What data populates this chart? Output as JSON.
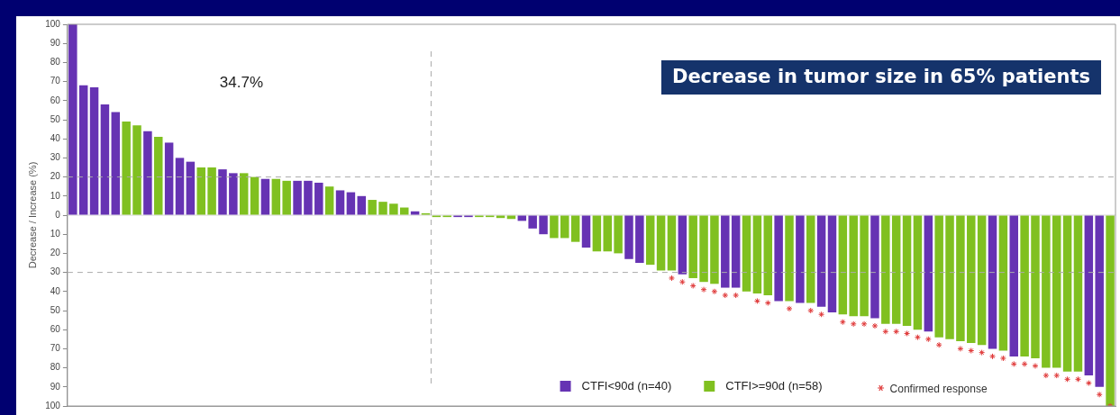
{
  "chart_data": {
    "type": "bar",
    "ylabel": "Decrease / Increase (%)",
    "annotations": [
      "34.7%",
      "Decrease in tumor size in 65% patients"
    ],
    "categories": [
      null,
      null,
      null,
      null,
      null,
      null,
      null,
      null,
      null,
      null,
      null,
      null,
      null,
      null,
      null,
      null,
      null,
      null,
      null,
      null,
      null,
      null,
      null,
      null,
      null,
      null,
      null,
      null,
      null,
      null,
      null,
      null,
      null,
      null,
      null,
      null,
      null,
      null,
      null,
      null,
      null,
      null,
      null,
      null,
      null,
      null,
      null,
      null,
      null,
      null,
      null,
      null,
      null,
      null,
      null,
      null,
      null,
      null,
      null,
      null,
      null,
      null,
      null,
      null,
      null,
      null,
      null,
      null,
      null,
      null,
      null,
      null,
      null,
      null,
      null,
      null,
      null,
      null,
      null,
      null,
      null,
      null,
      null,
      null,
      null,
      null,
      null,
      null,
      null,
      null,
      null,
      null,
      null,
      null,
      null,
      null,
      null,
      null
    ],
    "series": [
      {
        "name": "CTFI<90d (n=40)",
        "color": "#6633b3",
        "values": [
          100,
          68,
          67,
          58,
          54,
          null,
          null,
          44,
          null,
          38,
          30,
          28,
          null,
          null,
          24,
          22,
          null,
          null,
          19,
          null,
          null,
          18,
          18,
          17,
          null,
          13,
          12,
          10,
          null,
          null,
          null,
          null,
          2,
          null,
          null,
          null,
          -1,
          -1,
          null,
          null,
          null,
          null,
          -3,
          -7,
          -10,
          null,
          null,
          null,
          -17,
          null,
          null,
          null,
          -23,
          -25,
          null,
          null,
          null,
          -31,
          null,
          null,
          null,
          -38,
          -38,
          null,
          null,
          null,
          -45,
          null,
          -46,
          null,
          -48,
          -51,
          null,
          null,
          null,
          -54,
          null,
          null,
          null,
          null,
          -61,
          null,
          null,
          null,
          null,
          null,
          -70,
          null,
          -74,
          null,
          null,
          null,
          null,
          null,
          null,
          -84,
          -90,
          null
        ]
      },
      {
        "name": "CTFI>=90d (n=58)",
        "color": "#80c020",
        "values": [
          null,
          null,
          null,
          null,
          null,
          49,
          47,
          null,
          41,
          null,
          null,
          null,
          25,
          25,
          null,
          null,
          22,
          20,
          null,
          19,
          18,
          null,
          null,
          null,
          15,
          null,
          null,
          null,
          8,
          7,
          6,
          4,
          null,
          1,
          -1,
          -1,
          null,
          null,
          -1,
          -1,
          -1.5,
          -2,
          null,
          null,
          null,
          -12,
          -12,
          -14,
          null,
          -19,
          -19,
          -20,
          null,
          null,
          -26,
          -29,
          -29,
          null,
          -33,
          -35,
          -36,
          null,
          null,
          -40,
          -41,
          -42,
          null,
          -45,
          null,
          -46,
          null,
          null,
          -52,
          -53,
          -53,
          null,
          -57,
          -57,
          -58,
          -60,
          null,
          -64,
          -65,
          -66,
          -67,
          -68,
          null,
          -71,
          null,
          -74,
          -75,
          -80,
          -80,
          -82,
          -82,
          null,
          null,
          -100
        ]
      },
      {
        "name": "Confirmed response",
        "type": "scatter",
        "marker": "cross",
        "color": "#e03a3a",
        "values": [
          null,
          null,
          null,
          null,
          null,
          null,
          null,
          null,
          null,
          null,
          null,
          null,
          null,
          null,
          null,
          null,
          null,
          null,
          null,
          null,
          null,
          null,
          null,
          null,
          null,
          null,
          null,
          null,
          null,
          null,
          null,
          null,
          null,
          null,
          null,
          null,
          null,
          null,
          null,
          null,
          null,
          null,
          null,
          null,
          null,
          null,
          null,
          null,
          null,
          null,
          null,
          null,
          null,
          null,
          null,
          null,
          -33,
          -35,
          -37,
          -39,
          -40,
          -42,
          -42,
          null,
          -45,
          -46,
          null,
          -49,
          null,
          -50,
          -52,
          null,
          -56,
          -57,
          -57,
          -58,
          -61,
          -61,
          -62,
          -64,
          -65,
          -68,
          null,
          -70,
          -71,
          -72,
          -74,
          -75,
          -78,
          -78,
          -79,
          -84,
          -84,
          -86,
          -86,
          -88,
          -94,
          -100
        ]
      }
    ],
    "ylim": [
      -100,
      100
    ],
    "yticks": [
      {
        "value": -100,
        "label": "100"
      },
      {
        "value": -90,
        "label": "90"
      },
      {
        "value": -80,
        "label": "80"
      },
      {
        "value": -70,
        "label": "70"
      },
      {
        "value": -60,
        "label": "60"
      },
      {
        "value": -50,
        "label": "50"
      },
      {
        "value": -40,
        "label": "40"
      },
      {
        "value": -30,
        "label": "30"
      },
      {
        "value": -20,
        "label": "20"
      },
      {
        "value": -10,
        "label": "10"
      },
      0,
      10,
      20,
      30,
      40,
      50,
      60,
      70,
      80,
      90,
      100
    ],
    "ref_lines": [
      {
        "axis": "y",
        "value": 20,
        "line_style": "dashed",
        "color": "#aaaaaa"
      },
      {
        "axis": "y",
        "value": -30,
        "line_style": "dashed",
        "color": "#aaaaaa"
      }
    ],
    "legend": "bottom right",
    "tick_labels": "y",
    "grid": false
  }
}
